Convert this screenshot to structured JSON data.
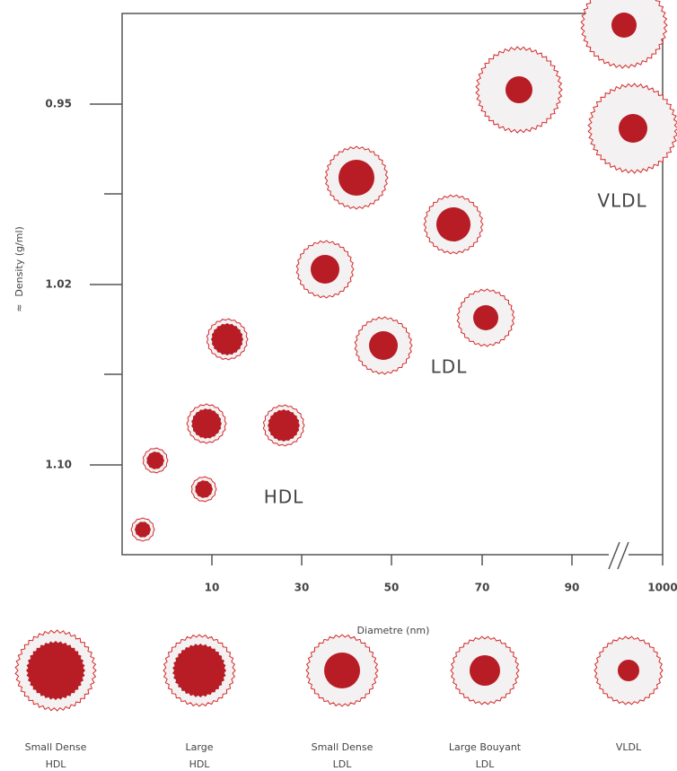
{
  "y_axis": {
    "symbol": "≈",
    "label": "Density (g/ml)",
    "ticks": [
      "0.95",
      "1.02",
      "1.10"
    ]
  },
  "x_axis": {
    "label": "Diametre (nm)",
    "ticks": [
      "10",
      "30",
      "50",
      "70",
      "90",
      "1000"
    ]
  },
  "regions": [
    "HDL",
    "LDL",
    "VLDL"
  ],
  "legend": [
    [
      "Small Dense",
      "HDL"
    ],
    [
      "Large",
      "HDL"
    ],
    [
      "Small Dense",
      "LDL"
    ],
    [
      "Large Bouyant",
      "LDL"
    ],
    [
      "VLDL"
    ]
  ]
}
